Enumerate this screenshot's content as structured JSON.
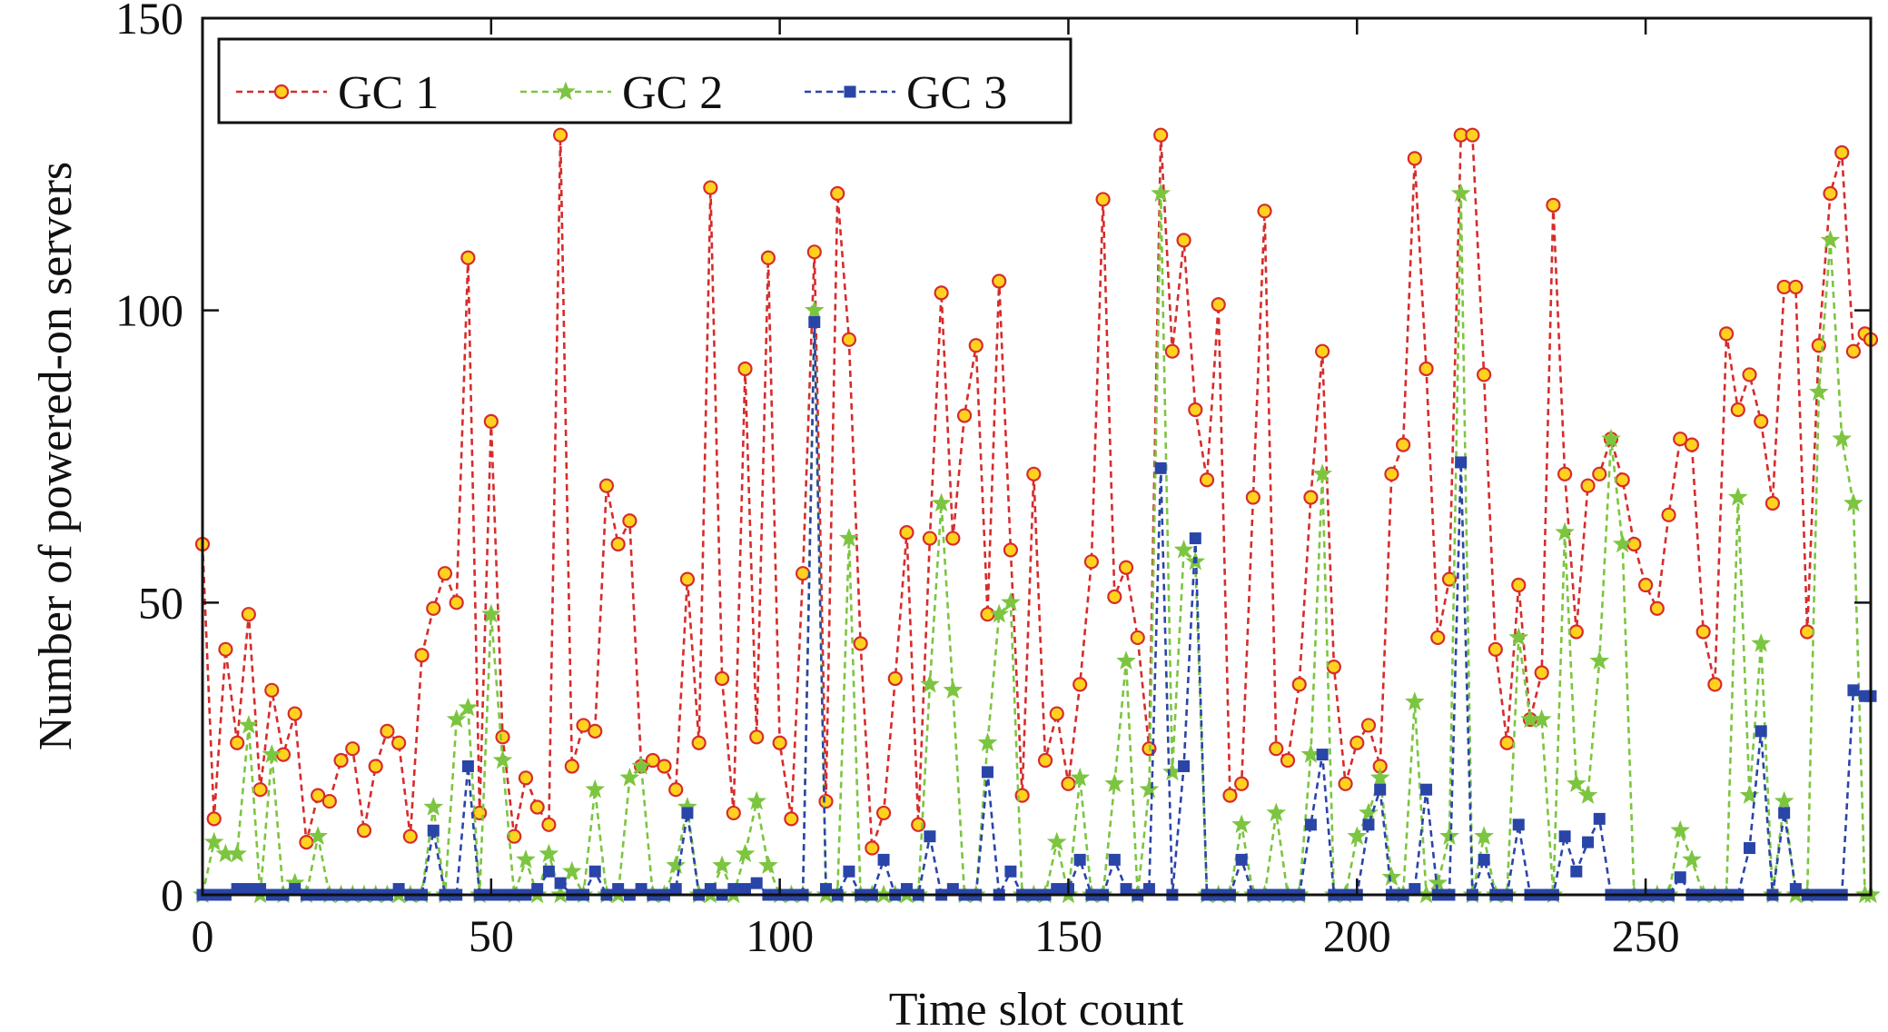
{
  "chart_data": {
    "type": "line",
    "xlabel": "Time slot count",
    "ylabel": "Number of powered-on servers",
    "xlim": [
      0,
      289
    ],
    "ylim": [
      0,
      150
    ],
    "xticks": [
      0,
      50,
      100,
      150,
      200,
      250
    ],
    "yticks": [
      0,
      50,
      100,
      150
    ],
    "legend": {
      "position": "top-left",
      "orientation": "horizontal"
    },
    "grid": false,
    "series": [
      {
        "name": "GC 1",
        "color": "#d62c2c",
        "marker": "circle",
        "marker_fill": "#ffd21e",
        "x": [
          0,
          2,
          4,
          6,
          8,
          10,
          12,
          14,
          16,
          18,
          20,
          22,
          24,
          26,
          28,
          30,
          32,
          34,
          36,
          38,
          40,
          42,
          44,
          46,
          48,
          50,
          52,
          54,
          56,
          58,
          60,
          62,
          64,
          66,
          68,
          70,
          72,
          74,
          76,
          78,
          80,
          82,
          84,
          86,
          88,
          90,
          92,
          94,
          96,
          98,
          100,
          102,
          104,
          106,
          108,
          110,
          112,
          114,
          116,
          118,
          120,
          122,
          124,
          126,
          128,
          130,
          132,
          134,
          136,
          138,
          140,
          142,
          144,
          146,
          148,
          150,
          152,
          154,
          156,
          158,
          160,
          162,
          164,
          166,
          168,
          170,
          172,
          174,
          176,
          178,
          180,
          182,
          184,
          186,
          188,
          190,
          192,
          194,
          196,
          198,
          200,
          202,
          204,
          206,
          208,
          210,
          212,
          214,
          216,
          218,
          220,
          222,
          224,
          226,
          228,
          230,
          232,
          234,
          236,
          238,
          240,
          242,
          244,
          246,
          248,
          250,
          252,
          254,
          256,
          258,
          260,
          262,
          264,
          266,
          268,
          270,
          272,
          274,
          276,
          278,
          280,
          282,
          284,
          286,
          288,
          289
        ],
        "y": [
          60,
          13,
          42,
          26,
          48,
          18,
          35,
          24,
          31,
          9,
          17,
          16,
          23,
          25,
          11,
          22,
          28,
          26,
          10,
          41,
          49,
          55,
          50,
          109,
          14,
          81,
          27,
          10,
          20,
          15,
          12,
          130,
          22,
          29,
          28,
          70,
          60,
          64,
          22,
          23,
          22,
          18,
          54,
          26,
          121,
          37,
          14,
          90,
          27,
          109,
          26,
          13,
          55,
          110,
          16,
          120,
          95,
          43,
          8,
          14,
          37,
          62,
          12,
          61,
          103,
          61,
          82,
          94,
          48,
          105,
          59,
          17,
          72,
          23,
          31,
          19,
          36,
          57,
          119,
          51,
          56,
          44,
          25,
          130,
          93,
          112,
          83,
          71,
          101,
          17,
          19,
          68,
          117,
          25,
          23,
          36,
          68,
          93,
          39,
          19,
          26,
          29,
          22,
          72,
          77,
          126,
          90,
          44,
          54,
          130,
          130,
          89,
          42,
          26,
          53,
          30,
          38,
          118,
          72,
          45,
          70,
          72,
          78,
          71,
          60,
          53,
          49,
          65,
          78,
          77,
          45,
          36,
          96,
          83,
          89,
          81,
          67,
          104,
          104,
          45,
          94,
          120,
          127,
          93,
          96,
          95
        ]
      },
      {
        "name": "GC 2",
        "color": "#7cc540",
        "marker": "star",
        "marker_fill": "#7cc540",
        "x": [
          0,
          2,
          4,
          6,
          8,
          10,
          12,
          14,
          16,
          18,
          20,
          22,
          24,
          26,
          28,
          30,
          32,
          34,
          36,
          38,
          40,
          42,
          44,
          46,
          48,
          50,
          52,
          54,
          56,
          58,
          60,
          62,
          64,
          66,
          68,
          70,
          72,
          74,
          76,
          78,
          80,
          82,
          84,
          86,
          88,
          90,
          92,
          94,
          96,
          98,
          100,
          102,
          104,
          106,
          108,
          110,
          112,
          114,
          116,
          118,
          120,
          122,
          124,
          126,
          128,
          130,
          132,
          134,
          136,
          138,
          140,
          142,
          144,
          146,
          148,
          150,
          152,
          154,
          156,
          158,
          160,
          162,
          164,
          166,
          168,
          170,
          172,
          174,
          176,
          178,
          180,
          182,
          184,
          186,
          188,
          190,
          192,
          194,
          196,
          198,
          200,
          202,
          204,
          206,
          208,
          210,
          212,
          214,
          216,
          218,
          220,
          222,
          224,
          226,
          228,
          230,
          232,
          234,
          236,
          238,
          240,
          242,
          244,
          246,
          248,
          250,
          252,
          254,
          256,
          258,
          260,
          262,
          264,
          266,
          268,
          270,
          272,
          274,
          276,
          278,
          280,
          282,
          284,
          286,
          288,
          289
        ],
        "y": [
          0,
          9,
          7,
          7,
          29,
          0,
          24,
          0,
          2,
          0,
          10,
          0,
          0,
          0,
          0,
          0,
          0,
          0,
          0,
          0,
          15,
          0,
          30,
          32,
          0,
          48,
          23,
          0,
          6,
          0,
          7,
          0,
          4,
          0,
          18,
          0,
          0,
          20,
          22,
          0,
          0,
          5,
          15,
          0,
          0,
          5,
          0,
          7,
          16,
          5,
          0,
          0,
          0,
          100,
          0,
          0,
          61,
          0,
          0,
          0,
          0,
          0,
          0,
          36,
          67,
          35,
          0,
          0,
          26,
          48,
          50,
          0,
          0,
          0,
          9,
          0,
          20,
          0,
          0,
          19,
          40,
          0,
          18,
          120,
          21,
          59,
          57,
          0,
          0,
          0,
          12,
          0,
          0,
          14,
          0,
          0,
          24,
          72,
          0,
          0,
          10,
          14,
          20,
          3,
          0,
          33,
          0,
          2,
          10,
          120,
          0,
          10,
          0,
          0,
          44,
          30,
          30,
          0,
          62,
          19,
          17,
          40,
          78,
          60,
          0,
          0,
          0,
          0,
          11,
          6,
          0,
          0,
          0,
          68,
          17,
          43,
          0,
          16,
          0,
          0,
          86,
          112,
          78,
          67,
          0,
          0
        ]
      },
      {
        "name": "GC 3",
        "color": "#2a45a8",
        "marker": "square",
        "marker_fill": "#2a45a8",
        "x": [
          0,
          2,
          4,
          6,
          8,
          10,
          12,
          14,
          16,
          18,
          20,
          22,
          24,
          26,
          28,
          30,
          32,
          34,
          36,
          38,
          40,
          42,
          44,
          46,
          48,
          50,
          52,
          54,
          56,
          58,
          60,
          62,
          64,
          66,
          68,
          70,
          72,
          74,
          76,
          78,
          80,
          82,
          84,
          86,
          88,
          90,
          92,
          94,
          96,
          98,
          100,
          102,
          104,
          106,
          108,
          110,
          112,
          114,
          116,
          118,
          120,
          122,
          124,
          126,
          128,
          130,
          132,
          134,
          136,
          138,
          140,
          142,
          144,
          146,
          148,
          150,
          152,
          154,
          156,
          158,
          160,
          162,
          164,
          166,
          168,
          170,
          172,
          174,
          176,
          178,
          180,
          182,
          184,
          186,
          188,
          190,
          192,
          194,
          196,
          198,
          200,
          202,
          204,
          206,
          208,
          210,
          212,
          214,
          216,
          218,
          220,
          222,
          224,
          226,
          228,
          230,
          232,
          234,
          236,
          238,
          240,
          242,
          244,
          246,
          248,
          250,
          252,
          254,
          256,
          258,
          260,
          262,
          264,
          266,
          268,
          270,
          272,
          274,
          276,
          278,
          280,
          282,
          284,
          286,
          288,
          289
        ],
        "y": [
          0,
          0,
          0,
          1,
          1,
          1,
          0,
          0,
          1,
          0,
          0,
          0,
          0,
          0,
          0,
          0,
          0,
          1,
          0,
          0,
          11,
          0,
          0,
          22,
          0,
          0,
          0,
          0,
          0,
          1,
          4,
          2,
          0,
          0,
          4,
          0,
          1,
          0,
          1,
          0,
          0,
          1,
          14,
          0,
          1,
          0,
          1,
          1,
          2,
          0,
          0,
          0,
          0,
          98,
          1,
          0,
          4,
          0,
          0,
          6,
          0,
          1,
          0,
          10,
          0,
          1,
          0,
          0,
          21,
          0,
          4,
          0,
          0,
          0,
          1,
          1,
          6,
          0,
          0,
          6,
          1,
          0,
          1,
          73,
          0,
          22,
          61,
          0,
          0,
          0,
          6,
          0,
          0,
          0,
          0,
          0,
          12,
          24,
          0,
          0,
          0,
          12,
          18,
          0,
          0,
          1,
          18,
          0,
          0,
          74,
          0,
          6,
          0,
          0,
          12,
          0,
          0,
          0,
          10,
          4,
          9,
          13,
          0,
          0,
          0,
          0,
          0,
          0,
          3,
          0,
          0,
          0,
          0,
          0,
          8,
          28,
          0,
          14,
          1,
          0,
          0,
          0,
          0,
          35,
          34,
          34
        ]
      }
    ]
  }
}
